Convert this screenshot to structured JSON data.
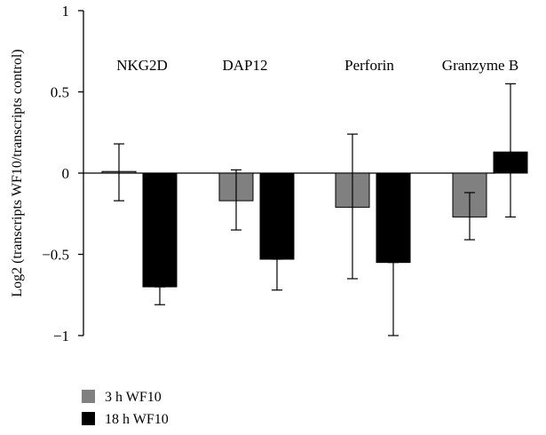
{
  "chart_data": {
    "type": "bar",
    "categories": [
      "NKG2D",
      "DAP12",
      "Perforin",
      "Granzyme B"
    ],
    "series": [
      {
        "name": "3 h WF10",
        "color": "#808080",
        "values": [
          0.01,
          -0.17,
          -0.21,
          -0.27
        ],
        "error_low": [
          -0.17,
          -0.35,
          -0.65,
          -0.41
        ],
        "error_high": [
          0.18,
          0.02,
          0.24,
          -0.12
        ]
      },
      {
        "name": "18 h WF10",
        "color": "#000000",
        "values": [
          -0.7,
          -0.53,
          -0.55,
          0.13
        ],
        "error_low": [
          -0.81,
          -0.72,
          -1.0,
          -0.27
        ],
        "error_high": [
          -0.7,
          -0.53,
          -0.55,
          0.55
        ]
      }
    ],
    "ylabel": "Log2 (transcripts WF10/transcripts control)",
    "xlabel": "",
    "ylim": [
      -1,
      1
    ],
    "yticks": [
      1,
      0.5,
      0,
      -0.5,
      -1
    ],
    "ytick_labels": [
      "1",
      "0.5",
      "0",
      "−0.5",
      "−1"
    ],
    "grid": false,
    "legend_position": "bottom-left"
  }
}
